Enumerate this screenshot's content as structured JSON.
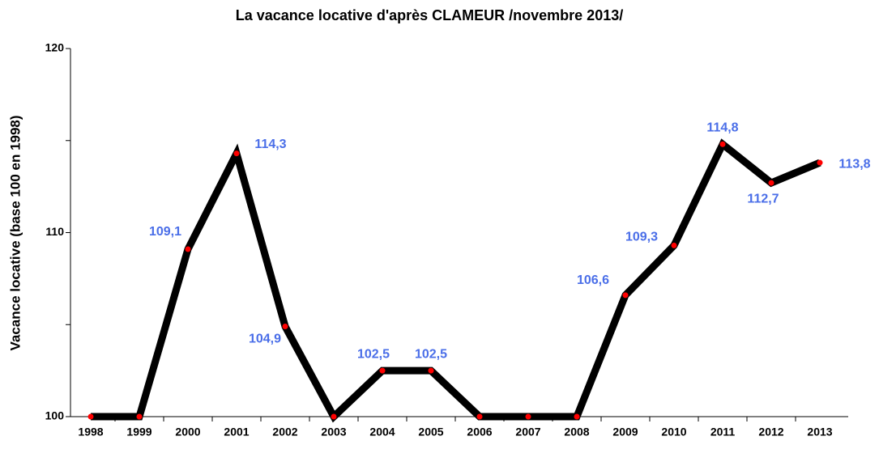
{
  "chart_data": {
    "type": "line",
    "title": "La vacance locative d'après CLAMEUR /novembre 2013/",
    "y_label": "Vacance locative (base 100 en 1998)",
    "categories": [
      "1998",
      "1999",
      "2000",
      "2001",
      "2002",
      "2003",
      "2004",
      "2005",
      "2006",
      "2007",
      "2008",
      "2009",
      "2010",
      "2011",
      "2012",
      "2013"
    ],
    "series": [
      {
        "name": "Vacance locative",
        "color": "#000000",
        "marker_color": "#ff0000",
        "values": [
          100,
          100,
          109.1,
          114.3,
          104.9,
          100,
          102.5,
          102.5,
          100,
          100,
          100,
          106.6,
          109.3,
          114.8,
          112.7,
          113.8
        ],
        "value_labels": [
          null,
          null,
          "109,1",
          "114,3",
          "104,9",
          null,
          "102,5",
          "102,5",
          null,
          null,
          null,
          "106,6",
          "109,3",
          "114,8",
          "112,7",
          "113,8"
        ]
      }
    ],
    "ylim": [
      100,
      120
    ],
    "yticks": [
      100,
      110,
      120
    ],
    "yminor": [
      105,
      115
    ]
  }
}
